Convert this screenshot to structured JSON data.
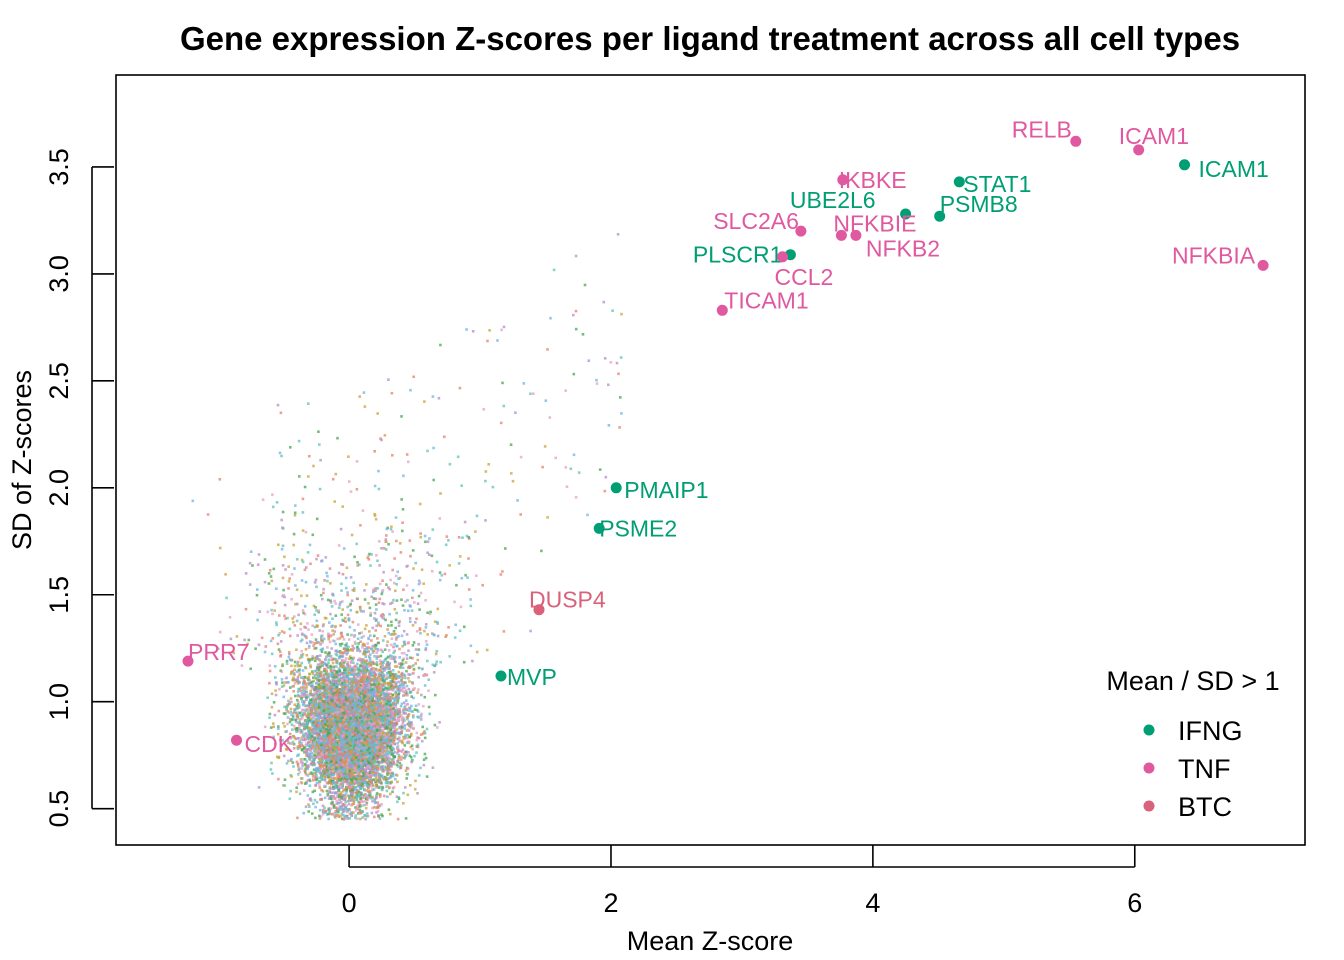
{
  "chart_data": {
    "type": "scatter",
    "title": "Gene expression Z-scores per ligand treatment across all cell types",
    "xlabel": "Mean Z-score",
    "ylabel": "SD of Z-scores",
    "xlim": [
      -1.78,
      7.3
    ],
    "ylim": [
      0.33,
      3.93
    ],
    "x_ticks": [
      0,
      2,
      4,
      6
    ],
    "y_ticks": [
      0.5,
      1.0,
      1.5,
      2.0,
      2.5,
      3.0,
      3.5
    ],
    "x_tick_labels": [
      "0",
      "2",
      "4",
      "6"
    ],
    "y_tick_labels": [
      "0.5",
      "1.0",
      "1.5",
      "2.0",
      "2.5",
      "3.0",
      "3.5"
    ],
    "grid": false,
    "legend": {
      "title": "Mean / SD > 1",
      "placement": "bottom-right",
      "entries": [
        {
          "label": "IFNG",
          "color": "#009E73"
        },
        {
          "label": "TNF",
          "color": "#E0589F"
        },
        {
          "label": "BTC",
          "color": "#D9617A"
        }
      ]
    },
    "background_cloud": {
      "description_colors": [
        "#E7A0C4",
        "#6BB6E6",
        "#45A852",
        "#C9A33A",
        "#B58EC9",
        "#E58070",
        "#5FC3B8"
      ],
      "center": [
        0.0,
        0.85
      ],
      "n_points": 9000
    },
    "highlighted": [
      {
        "gene": "ICAM1",
        "x": 6.38,
        "y": 3.51,
        "series": "IFNG"
      },
      {
        "gene": "STAT1",
        "x": 4.66,
        "y": 3.43,
        "series": "IFNG"
      },
      {
        "gene": "PSMB8",
        "x": 4.51,
        "y": 3.27,
        "series": "IFNG"
      },
      {
        "gene": "UBE2L6",
        "x": 4.25,
        "y": 3.28,
        "series": "IFNG"
      },
      {
        "gene": "PLSCR1",
        "x": 3.37,
        "y": 3.09,
        "series": "IFNG"
      },
      {
        "gene": "PMAIP1",
        "x": 2.04,
        "y": 2.0,
        "series": "IFNG"
      },
      {
        "gene": "PSME2",
        "x": 1.91,
        "y": 1.81,
        "series": "IFNG"
      },
      {
        "gene": "MVP",
        "x": 1.16,
        "y": 1.12,
        "series": "IFNG"
      },
      {
        "gene": "RELB",
        "x": 5.55,
        "y": 3.62,
        "series": "TNF"
      },
      {
        "gene": "ICAM1",
        "x": 6.03,
        "y": 3.58,
        "series": "TNF"
      },
      {
        "gene": "NFKBIA",
        "x": 6.98,
        "y": 3.04,
        "series": "TNF"
      },
      {
        "gene": "IKBKE",
        "x": 3.77,
        "y": 3.44,
        "series": "TNF"
      },
      {
        "gene": "SLC2A6",
        "x": 3.45,
        "y": 3.2,
        "series": "TNF"
      },
      {
        "gene": "NFKBIE",
        "x": 3.76,
        "y": 3.18,
        "series": "TNF"
      },
      {
        "gene": "NFKB2",
        "x": 3.87,
        "y": 3.18,
        "series": "TNF"
      },
      {
        "gene": "CCL2",
        "x": 3.31,
        "y": 3.08,
        "series": "TNF"
      },
      {
        "gene": "TICAM1",
        "x": 2.85,
        "y": 2.83,
        "series": "TNF"
      },
      {
        "gene": "PRR7",
        "x": -1.23,
        "y": 1.19,
        "series": "TNF"
      },
      {
        "gene": "CDK",
        "x": -0.86,
        "y": 0.82,
        "series": "TNF"
      },
      {
        "gene": "DUSP4",
        "x": 1.45,
        "y": 1.43,
        "series": "BTC"
      }
    ]
  }
}
